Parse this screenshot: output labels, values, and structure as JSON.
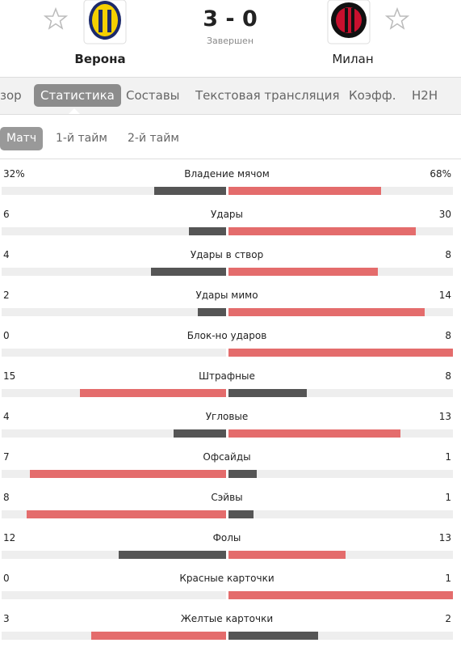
{
  "header": {
    "home_team": "Верона",
    "away_team": "Милан",
    "score": "3 - 0",
    "status": "Завершен"
  },
  "tabs": [
    "зор",
    "Статистика",
    "Составы",
    "Текстовая трансляция",
    "Коэфф.",
    "H2H"
  ],
  "subtabs": [
    "Матч",
    "1-й тайм",
    "2-й тайм"
  ],
  "stats": [
    {
      "label": "Владение мячом",
      "home": 32,
      "away": 68,
      "home_label": "32%",
      "away_label": "68%"
    },
    {
      "label": "Удары",
      "home": 6,
      "away": 30
    },
    {
      "label": "Удары в створ",
      "home": 4,
      "away": 8
    },
    {
      "label": "Удары мимо",
      "home": 2,
      "away": 14
    },
    {
      "label": "Блок-но ударов",
      "home": 0,
      "away": 8
    },
    {
      "label": "Штрафные",
      "home": 15,
      "away": 8
    },
    {
      "label": "Угловые",
      "home": 4,
      "away": 13
    },
    {
      "label": "Офсайды",
      "home": 7,
      "away": 1
    },
    {
      "label": "Сэйвы",
      "home": 8,
      "away": 1
    },
    {
      "label": "Фолы",
      "home": 12,
      "away": 13
    },
    {
      "label": "Красные карточки",
      "home": 0,
      "away": 1
    },
    {
      "label": "Желтые карточки",
      "home": 3,
      "away": 2
    }
  ]
}
